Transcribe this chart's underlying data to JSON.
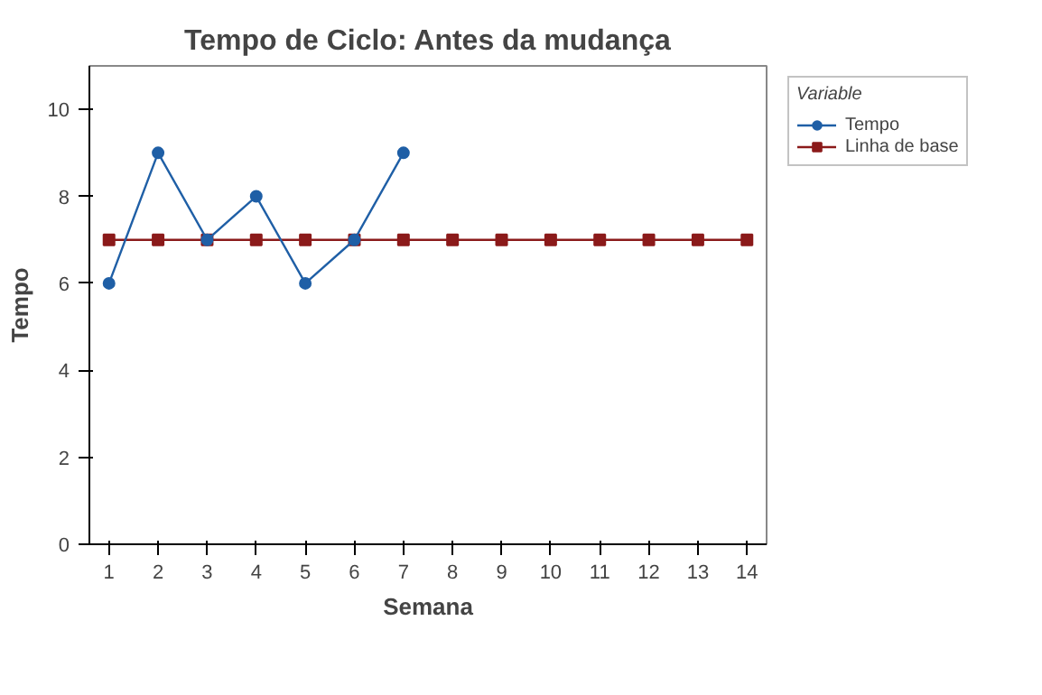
{
  "chart_data": {
    "type": "line",
    "title": "Tempo de Ciclo: Antes da mudança",
    "xlabel": "Semana",
    "ylabel": "Tempo",
    "legend_title": "Variable",
    "legend": "right",
    "grid": false,
    "xlim": [
      0.6,
      14.4
    ],
    "xticks": [
      1,
      2,
      3,
      4,
      5,
      6,
      7,
      8,
      9,
      10,
      11,
      12,
      13,
      14
    ],
    "ylim": [
      0,
      11
    ],
    "yticks": [
      0,
      2,
      4,
      6,
      8,
      10
    ],
    "series": [
      {
        "name": "Tempo",
        "color": "#1f5fa6",
        "marker": "circle",
        "x": [
          1,
          2,
          3,
          4,
          5,
          6,
          7
        ],
        "values": [
          6,
          9,
          7,
          8,
          6,
          7,
          9
        ]
      },
      {
        "name": "Linha de base",
        "color": "#8b1a1a",
        "marker": "square",
        "x": [
          1,
          2,
          3,
          4,
          5,
          6,
          7,
          8,
          9,
          10,
          11,
          12,
          13,
          14
        ],
        "values": [
          7,
          7,
          7,
          7,
          7,
          7,
          7,
          7,
          7,
          7,
          7,
          7,
          7,
          7
        ]
      }
    ]
  }
}
